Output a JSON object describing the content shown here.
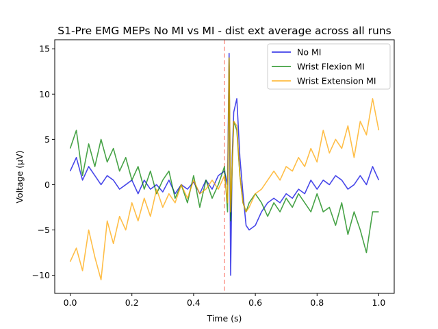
{
  "chart_data": {
    "type": "line",
    "title": "S1-Pre EMG MEPs No MI vs MI - dist ext average across all runs",
    "xlabel": "Time (s)",
    "ylabel": "Voltage (µV)",
    "xlim": [
      -0.05,
      1.05
    ],
    "ylim": [
      -12.0,
      16.0
    ],
    "xticks": [
      0.0,
      0.2,
      0.4,
      0.6,
      0.8,
      1.0
    ],
    "xtick_labels": [
      "0.0",
      "0.2",
      "0.4",
      "0.6",
      "0.8",
      "1.0"
    ],
    "yticks": [
      -10,
      -5,
      0,
      5,
      10,
      15
    ],
    "ytick_labels": [
      "−10",
      "−5",
      "0",
      "5",
      "10",
      "15"
    ],
    "grid": false,
    "legend_position": "upper right",
    "stimulus_line": {
      "x": 0.5,
      "style": "dashed",
      "color": "#fa8072"
    },
    "series": [
      {
        "name": "No MI",
        "color": "#0000e0",
        "x": [
          0.0,
          0.02,
          0.04,
          0.06,
          0.08,
          0.1,
          0.12,
          0.14,
          0.16,
          0.18,
          0.2,
          0.22,
          0.24,
          0.26,
          0.28,
          0.3,
          0.32,
          0.34,
          0.36,
          0.38,
          0.4,
          0.42,
          0.44,
          0.46,
          0.48,
          0.5,
          0.51,
          0.515,
          0.52,
          0.525,
          0.53,
          0.54,
          0.55,
          0.56,
          0.57,
          0.58,
          0.6,
          0.62,
          0.64,
          0.66,
          0.68,
          0.7,
          0.72,
          0.74,
          0.76,
          0.78,
          0.8,
          0.82,
          0.84,
          0.86,
          0.88,
          0.9,
          0.92,
          0.94,
          0.96,
          0.98,
          1.0
        ],
        "values": [
          1.5,
          3.0,
          0.5,
          2.0,
          1.0,
          0.0,
          1.0,
          0.5,
          -0.5,
          0.0,
          0.5,
          -1.0,
          0.5,
          -0.5,
          0.0,
          -0.8,
          0.5,
          -1.0,
          0.0,
          -0.5,
          0.3,
          -1.0,
          0.5,
          -0.5,
          1.0,
          1.5,
          0.0,
          14.5,
          -10.0,
          3.0,
          8.0,
          9.5,
          3.0,
          -1.0,
          -4.5,
          -5.0,
          -4.5,
          -3.0,
          -2.0,
          -1.5,
          -2.0,
          -1.0,
          -1.5,
          -0.5,
          -1.0,
          0.5,
          -0.5,
          0.5,
          0.0,
          1.0,
          0.5,
          -0.5,
          0.0,
          1.0,
          0.0,
          2.0,
          0.5
        ]
      },
      {
        "name": "Wrist Flexion MI",
        "color": "#008000",
        "x": [
          0.0,
          0.02,
          0.04,
          0.06,
          0.08,
          0.1,
          0.12,
          0.14,
          0.16,
          0.18,
          0.2,
          0.22,
          0.24,
          0.26,
          0.28,
          0.3,
          0.32,
          0.34,
          0.36,
          0.38,
          0.4,
          0.42,
          0.44,
          0.46,
          0.48,
          0.5,
          0.51,
          0.515,
          0.52,
          0.525,
          0.53,
          0.54,
          0.55,
          0.56,
          0.57,
          0.58,
          0.6,
          0.62,
          0.64,
          0.66,
          0.68,
          0.7,
          0.72,
          0.74,
          0.76,
          0.78,
          0.8,
          0.82,
          0.84,
          0.86,
          0.88,
          0.9,
          0.92,
          0.94,
          0.96,
          0.98,
          1.0
        ],
        "values": [
          4.0,
          6.0,
          1.0,
          4.5,
          2.0,
          5.0,
          2.5,
          4.0,
          1.5,
          3.0,
          0.5,
          2.0,
          -0.5,
          1.5,
          -1.0,
          0.5,
          1.5,
          -1.5,
          0.0,
          -2.0,
          1.0,
          -2.5,
          0.5,
          -1.5,
          0.0,
          2.0,
          -3.0,
          14.0,
          -4.0,
          2.0,
          7.0,
          6.0,
          1.0,
          -2.0,
          -3.0,
          -2.0,
          -1.0,
          -2.0,
          -3.5,
          -2.0,
          -3.0,
          -1.5,
          -2.5,
          -1.0,
          -2.0,
          -3.0,
          -1.0,
          -3.0,
          -2.5,
          -4.5,
          -2.0,
          -5.5,
          -3.0,
          -5.0,
          -7.5,
          -3.0,
          -3.0
        ]
      },
      {
        "name": "Wrist Extension MI",
        "color": "#ffa500",
        "x": [
          0.0,
          0.02,
          0.04,
          0.06,
          0.08,
          0.1,
          0.12,
          0.14,
          0.16,
          0.18,
          0.2,
          0.22,
          0.24,
          0.26,
          0.28,
          0.3,
          0.32,
          0.34,
          0.36,
          0.38,
          0.4,
          0.42,
          0.44,
          0.46,
          0.48,
          0.5,
          0.51,
          0.515,
          0.52,
          0.525,
          0.53,
          0.54,
          0.55,
          0.56,
          0.57,
          0.58,
          0.6,
          0.62,
          0.64,
          0.66,
          0.68,
          0.7,
          0.72,
          0.74,
          0.76,
          0.78,
          0.8,
          0.82,
          0.84,
          0.86,
          0.88,
          0.9,
          0.92,
          0.94,
          0.96,
          0.98,
          1.0
        ],
        "values": [
          -8.5,
          -7.0,
          -9.5,
          -5.0,
          -8.0,
          -10.5,
          -4.0,
          -6.5,
          -3.5,
          -5.0,
          -2.0,
          -4.0,
          -1.5,
          -3.5,
          -0.5,
          -2.5,
          -1.0,
          -2.0,
          0.0,
          -1.5,
          0.5,
          -1.0,
          -0.5,
          0.5,
          -0.5,
          1.0,
          -2.0,
          14.0,
          -3.0,
          2.0,
          7.0,
          6.5,
          1.0,
          -2.0,
          -3.0,
          -2.5,
          -1.0,
          -0.5,
          0.5,
          1.5,
          0.5,
          2.0,
          1.5,
          3.0,
          2.0,
          4.0,
          2.5,
          6.0,
          3.5,
          5.0,
          4.0,
          6.5,
          3.0,
          7.0,
          5.5,
          9.5,
          6.0
        ]
      }
    ]
  }
}
